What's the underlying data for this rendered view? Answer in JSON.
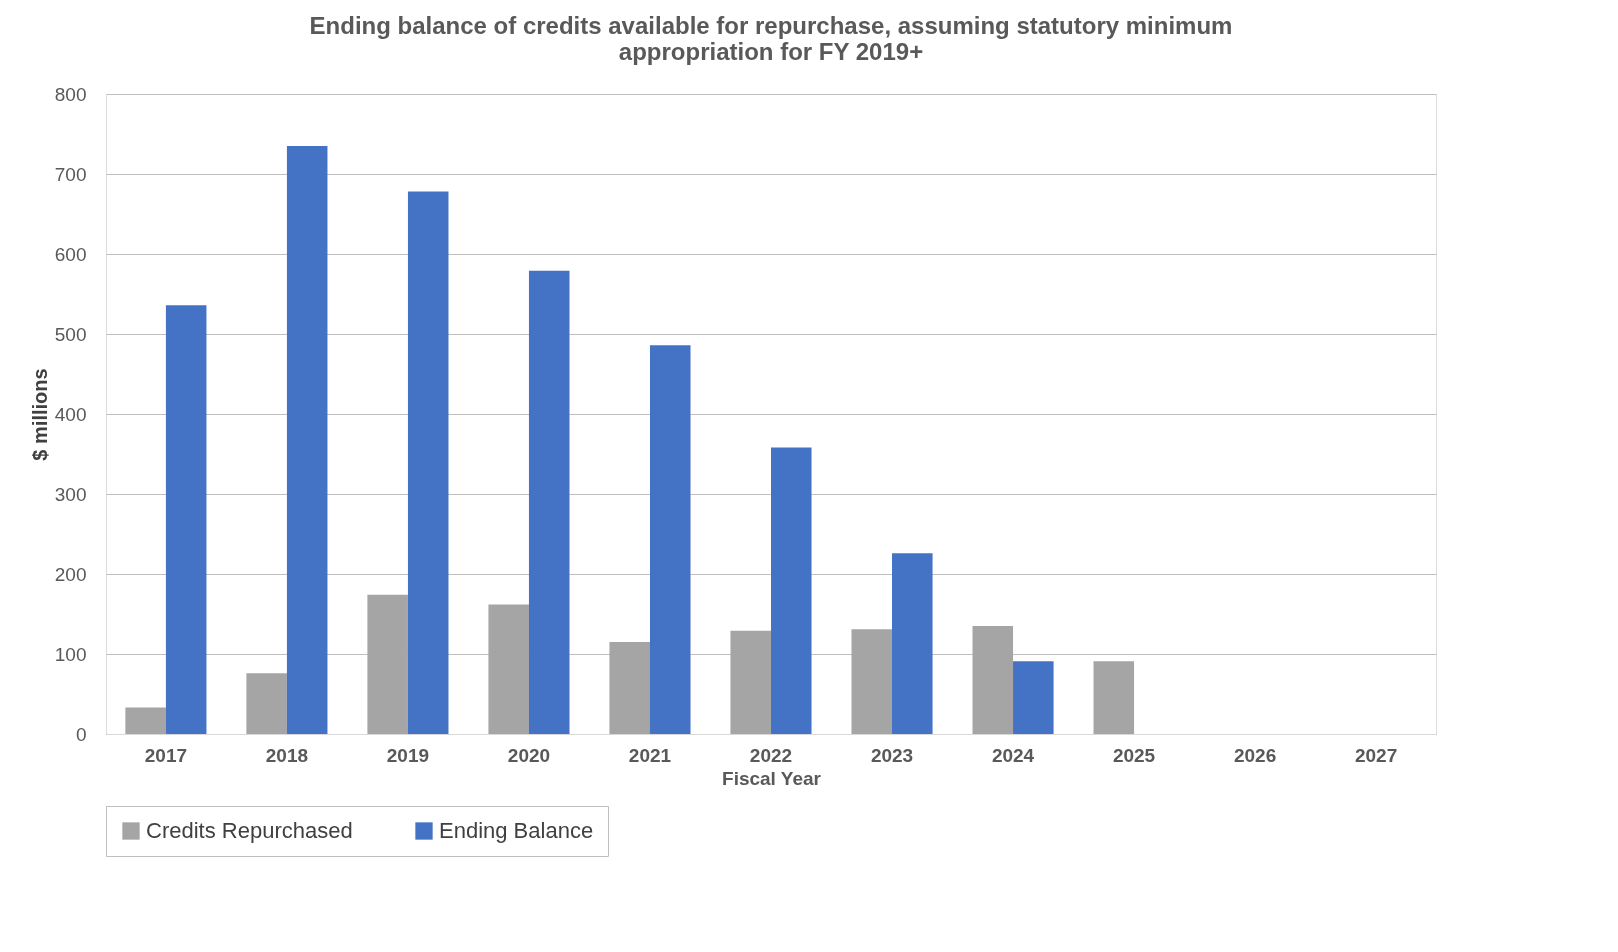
{
  "chart_data": {
    "type": "bar",
    "title": [
      "Ending balance of credits available for repurchase, assuming statutory minimum",
      "appropriation for FY 2019+"
    ],
    "xlabel": "Fiscal Year",
    "ylabel": "$ millions",
    "categories": [
      "2017",
      "2018",
      "2019",
      "2020",
      "2021",
      "2022",
      "2023",
      "2024",
      "2025",
      "2026",
      "2027"
    ],
    "series": [
      {
        "name": "Credits Repurchased",
        "color": "#a5a5a5",
        "values": [
          33,
          76,
          174,
          162,
          115,
          129,
          131,
          135,
          91,
          null,
          null
        ]
      },
      {
        "name": "Ending Balance",
        "color": "#4472c4",
        "values": [
          536,
          735,
          678,
          579,
          486,
          358,
          226,
          91,
          null,
          null,
          null
        ]
      }
    ],
    "ylim": [
      0,
      800
    ],
    "yticks": [
      0,
      100,
      200,
      300,
      400,
      500,
      600,
      700,
      800
    ],
    "grid": "y",
    "legend": "bottom"
  }
}
